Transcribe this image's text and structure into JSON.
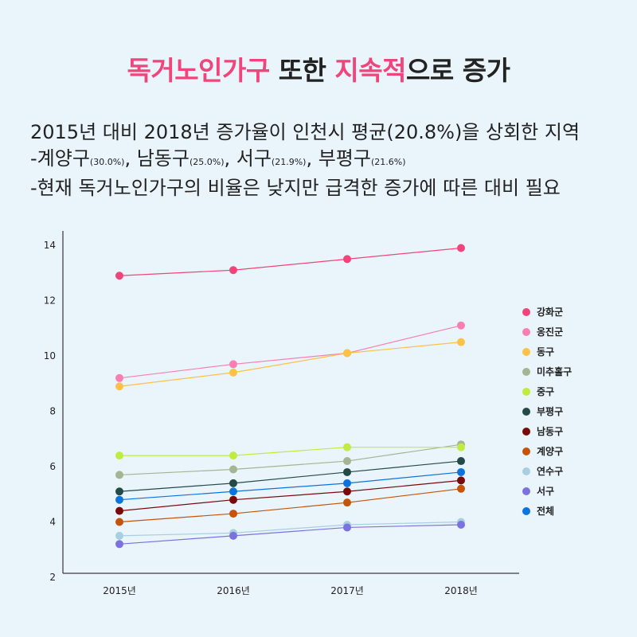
{
  "title": {
    "part1": "독거노인가구",
    "part2": " 또한 ",
    "part3": "지속적",
    "part4": "으로 증가",
    "highlight_color": "#f0447a"
  },
  "description": {
    "line1": "2015년 대비 2018년 증가율이 인천시 평균(20.8%)을 상회한 지역",
    "line2_items": [
      {
        "name": "-계양구",
        "pct": "(30.0%)",
        "sep": ", "
      },
      {
        "name": "남동구",
        "pct": "(25.0%)",
        "sep": ", "
      },
      {
        "name": "서구",
        "pct": "(21.9%)",
        "sep": ", "
      },
      {
        "name": "부평구",
        "pct": "(21.6%)",
        "sep": ""
      }
    ],
    "line3": "-현재 독거노인가구의 비율은 낮지만 급격한 증가에 따른 대비 필요"
  },
  "chart_data": {
    "type": "line",
    "title": "",
    "xlabel": "",
    "ylabel": "",
    "categories": [
      "2015년",
      "2016년",
      "2017년",
      "2018년"
    ],
    "ylim": [
      2,
      14
    ],
    "yticks": [
      2,
      4,
      6,
      8,
      10,
      12,
      14
    ],
    "grid": false,
    "legend_position": "right",
    "series": [
      {
        "name": "강화군",
        "color": "#f0447a",
        "values": [
          12.9,
          13.1,
          13.5,
          13.9
        ]
      },
      {
        "name": "옹진군",
        "color": "#f77fb4",
        "values": [
          9.2,
          9.7,
          10.1,
          11.1
        ]
      },
      {
        "name": "동구",
        "color": "#fcc247",
        "values": [
          8.9,
          9.4,
          10.1,
          10.5
        ]
      },
      {
        "name": "미추홀구",
        "color": "#a3b592",
        "values": [
          5.7,
          5.9,
          6.2,
          6.8
        ]
      },
      {
        "name": "중구",
        "color": "#c0ec40",
        "values": [
          6.4,
          6.4,
          6.7,
          6.7
        ]
      },
      {
        "name": "부평구",
        "color": "#234a48",
        "values": [
          5.1,
          5.4,
          5.8,
          6.2
        ]
      },
      {
        "name": "남동구",
        "color": "#7a0a0a",
        "values": [
          4.4,
          4.8,
          5.1,
          5.5
        ]
      },
      {
        "name": "계양구",
        "color": "#c65408",
        "values": [
          4.0,
          4.3,
          4.7,
          5.2
        ]
      },
      {
        "name": "연수구",
        "color": "#a7cfe2",
        "values": [
          3.5,
          3.6,
          3.9,
          4.0
        ]
      },
      {
        "name": "서구",
        "color": "#7b72e0",
        "values": [
          3.2,
          3.5,
          3.8,
          3.9
        ]
      },
      {
        "name": "전체",
        "color": "#0b74de",
        "values": [
          4.8,
          5.1,
          5.4,
          5.8
        ]
      }
    ]
  }
}
